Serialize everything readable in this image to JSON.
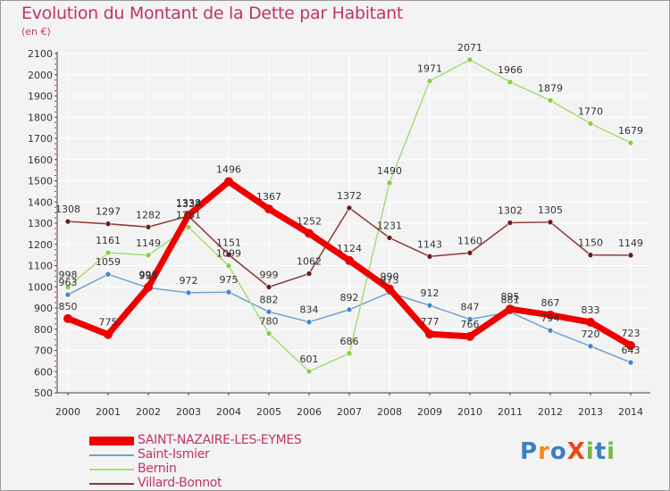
{
  "title": "Evolution du Montant de la Dette par Habitant",
  "unit": "(en €)",
  "logo_text": "Proxiti",
  "colors": {
    "background": "#f3f3f3",
    "grid": "#ffffff",
    "axis": "#444444",
    "text": "#c0336b",
    "tick_mark": "#dd2222"
  },
  "chart_data": {
    "type": "line",
    "x": [
      "2000",
      "2001",
      "2002",
      "2003",
      "2004",
      "2005",
      "2006",
      "2007",
      "2008",
      "2009",
      "2010",
      "2011",
      "2012",
      "2013",
      "2014"
    ],
    "ylim": [
      500,
      2100
    ],
    "yticks": [
      500,
      600,
      700,
      800,
      900,
      1000,
      1100,
      1200,
      1300,
      1400,
      1500,
      1600,
      1700,
      1800,
      1900,
      2000,
      2100
    ],
    "grid": true,
    "legend_position": "bottom-left",
    "series": [
      {
        "name": "SAINT-NAZAIRE-LES-EYMES",
        "color": "#ee0000",
        "marker": "#ee0000",
        "width": 7,
        "values": [
          850,
          775,
          998,
          1338,
          1496,
          1367,
          1252,
          1124,
          990,
          777,
          766,
          895,
          867,
          833,
          723
        ]
      },
      {
        "name": "Saint-Ismier",
        "color": "#6fa2d0",
        "marker": "#4a86c4",
        "width": 1.5,
        "values": [
          963,
          1059,
          995,
          972,
          975,
          882,
          834,
          892,
          973,
          912,
          847,
          881,
          794,
          720,
          643
        ]
      },
      {
        "name": "Bernin",
        "color": "#a6dc78",
        "marker": "#8acc4a",
        "width": 1.5,
        "values": [
          998,
          1161,
          1149,
          1281,
          1099,
          780,
          601,
          686,
          1490,
          1971,
          2071,
          1966,
          1879,
          1770,
          1679
        ]
      },
      {
        "name": "Villard-Bonnot",
        "color": "#8a3a3a",
        "marker": "#6b1c1c",
        "width": 1.5,
        "values": [
          1308,
          1297,
          1282,
          1334,
          1151,
          999,
          1062,
          1372,
          1231,
          1143,
          1160,
          1302,
          1305,
          1150,
          1149
        ]
      }
    ]
  }
}
